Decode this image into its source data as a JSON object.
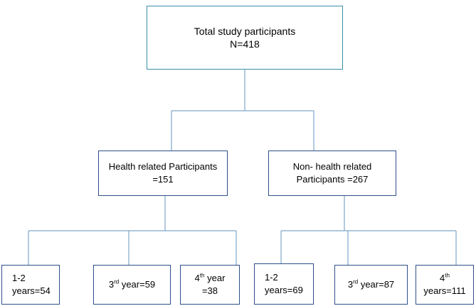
{
  "root": {
    "line1": "Total study participants",
    "line2": "N=418"
  },
  "health": {
    "line1": "Health related Participants",
    "line2": "=151"
  },
  "non_health": {
    "line1": "Non- health related",
    "line2": "Participants =267"
  },
  "health_children": [
    {
      "line1": "1-2",
      "line2": "years=54"
    },
    {
      "base": "3",
      "sup": "rd",
      "rest": " year=59"
    },
    {
      "base": "4",
      "sup": "th",
      "rest": " year",
      "line2": "=38"
    }
  ],
  "non_health_children": [
    {
      "line1": "1-2",
      "line2": "years=69"
    },
    {
      "base": "3",
      "sup": "rd",
      "rest": " year=87"
    },
    {
      "base": "4",
      "sup": "th",
      "line2": "years=111"
    }
  ],
  "colors": {
    "connector": "#7fa7c9",
    "box_border": "#2e4f8a",
    "root_border": "#3a8fa8"
  }
}
